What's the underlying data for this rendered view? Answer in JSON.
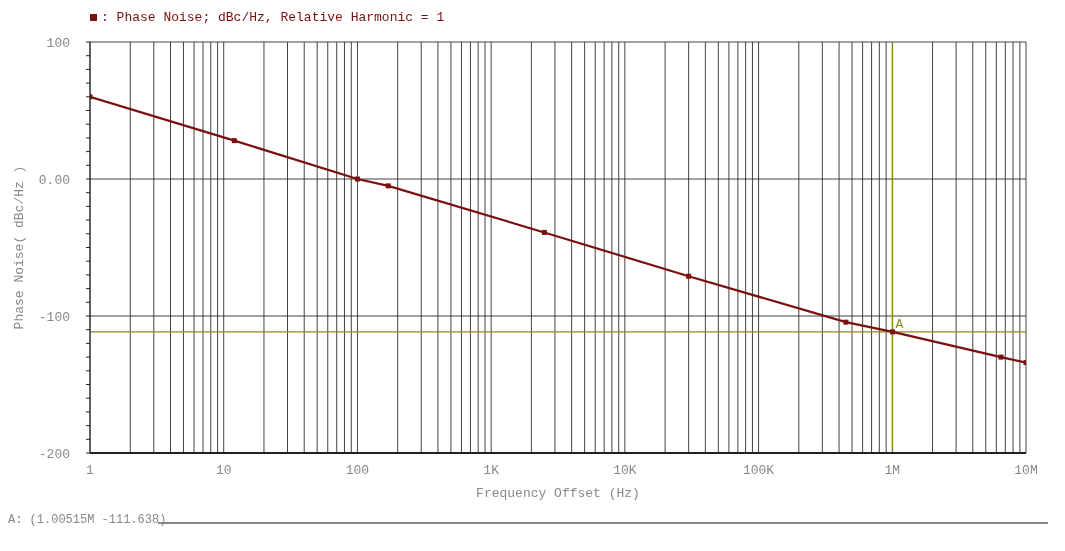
{
  "chart_data": {
    "type": "line",
    "title": null,
    "xlabel": "Frequency Offset (Hz)",
    "ylabel": "Phase Noise( dBc/Hz )",
    "log": "x",
    "grid": true,
    "legend": "top left",
    "marker": "square",
    "line_style": "solid",
    "xlim": [
      1,
      10000000
    ],
    "xticks": [
      1,
      {
        "value": 2,
        "label": null
      },
      {
        "value": 3,
        "label": null
      },
      {
        "value": 4,
        "label": null
      },
      {
        "value": 5,
        "label": null
      },
      {
        "value": 6,
        "label": null
      },
      {
        "value": 7,
        "label": null
      },
      {
        "value": 8,
        "label": null
      },
      {
        "value": 9,
        "label": null
      },
      10,
      {
        "value": 20,
        "label": null
      },
      {
        "value": 30,
        "label": null
      },
      {
        "value": 40,
        "label": null
      },
      {
        "value": 50,
        "label": null
      },
      {
        "value": 60,
        "label": null
      },
      {
        "value": 70,
        "label": null
      },
      {
        "value": 80,
        "label": null
      },
      {
        "value": 90,
        "label": null
      },
      100,
      {
        "value": 200,
        "label": null
      },
      {
        "value": 300,
        "label": null
      },
      {
        "value": 400,
        "label": null
      },
      {
        "value": 500,
        "label": null
      },
      {
        "value": 600,
        "label": null
      },
      {
        "value": 700,
        "label": null
      },
      {
        "value": 800,
        "label": null
      },
      {
        "value": 900,
        "label": null
      },
      {
        "value": 1000,
        "label": "1K"
      },
      {
        "value": 2000,
        "label": null
      },
      {
        "value": 3000,
        "label": null
      },
      {
        "value": 4000,
        "label": null
      },
      {
        "value": 5000,
        "label": null
      },
      {
        "value": 6000,
        "label": null
      },
      {
        "value": 7000,
        "label": null
      },
      {
        "value": 8000,
        "label": null
      },
      {
        "value": 9000,
        "label": null
      },
      {
        "value": 10000,
        "label": "10K"
      },
      {
        "value": 20000,
        "label": null
      },
      {
        "value": 30000,
        "label": null
      },
      {
        "value": 40000,
        "label": null
      },
      {
        "value": 50000,
        "label": null
      },
      {
        "value": 60000,
        "label": null
      },
      {
        "value": 70000,
        "label": null
      },
      {
        "value": 80000,
        "label": null
      },
      {
        "value": 90000,
        "label": null
      },
      {
        "value": 100000,
        "label": "100K"
      },
      {
        "value": 200000,
        "label": null
      },
      {
        "value": 300000,
        "label": null
      },
      {
        "value": 400000,
        "label": null
      },
      {
        "value": 500000,
        "label": null
      },
      {
        "value": 600000,
        "label": null
      },
      {
        "value": 700000,
        "label": null
      },
      {
        "value": 800000,
        "label": null
      },
      {
        "value": 900000,
        "label": null
      },
      {
        "value": 1000000,
        "label": "1M"
      },
      {
        "value": 2000000,
        "label": null
      },
      {
        "value": 3000000,
        "label": null
      },
      {
        "value": 4000000,
        "label": null
      },
      {
        "value": 5000000,
        "label": null
      },
      {
        "value": 6000000,
        "label": null
      },
      {
        "value": 7000000,
        "label": null
      },
      {
        "value": 8000000,
        "label": null
      },
      {
        "value": 9000000,
        "label": null
      },
      {
        "value": 10000000,
        "label": "10M"
      }
    ],
    "ylim": [
      -200,
      100
    ],
    "yticks": [
      100,
      {
        "value": 90,
        "label": null
      },
      {
        "value": 80,
        "label": null
      },
      {
        "value": 70,
        "label": null
      },
      {
        "value": 60,
        "label": null
      },
      {
        "value": 50,
        "label": null
      },
      {
        "value": 40,
        "label": null
      },
      {
        "value": 30,
        "label": null
      },
      {
        "value": 20,
        "label": null
      },
      {
        "value": 10,
        "label": null
      },
      {
        "value": 0,
        "label": "0.00"
      },
      {
        "value": -10,
        "label": null
      },
      {
        "value": -20,
        "label": null
      },
      {
        "value": -30,
        "label": null
      },
      {
        "value": -40,
        "label": null
      },
      {
        "value": -50,
        "label": null
      },
      {
        "value": -60,
        "label": null
      },
      {
        "value": -70,
        "label": null
      },
      {
        "value": -80,
        "label": null
      },
      {
        "value": -90,
        "label": null
      },
      -100,
      {
        "value": -110,
        "label": null
      },
      {
        "value": -120,
        "label": null
      },
      {
        "value": -130,
        "label": null
      },
      {
        "value": -140,
        "label": null
      },
      {
        "value": -150,
        "label": null
      },
      {
        "value": -160,
        "label": null
      },
      {
        "value": -170,
        "label": null
      },
      {
        "value": -180,
        "label": null
      },
      {
        "value": -190,
        "label": null
      },
      -200
    ],
    "x": [
      1,
      12,
      100,
      170,
      2500,
      30000,
      450000,
      1005150,
      6500000,
      10000000
    ],
    "series": [
      {
        "name": ": Phase Noise; dBc/Hz, Relative Harmonic = 1",
        "color": "#7a1010",
        "values": [
          60,
          28,
          0,
          -5,
          -39,
          -71,
          -104.5,
          -111.6,
          -130,
          -134
        ]
      }
    ],
    "ref_lines": [
      {
        "axis": "x",
        "value": 1005150,
        "label": "A",
        "color": "#8a8a1e"
      },
      {
        "axis": "y",
        "value": -111.638,
        "color": "#8a8a1e"
      }
    ],
    "annotations": [
      "A: (1.00515M -111.638)"
    ]
  }
}
